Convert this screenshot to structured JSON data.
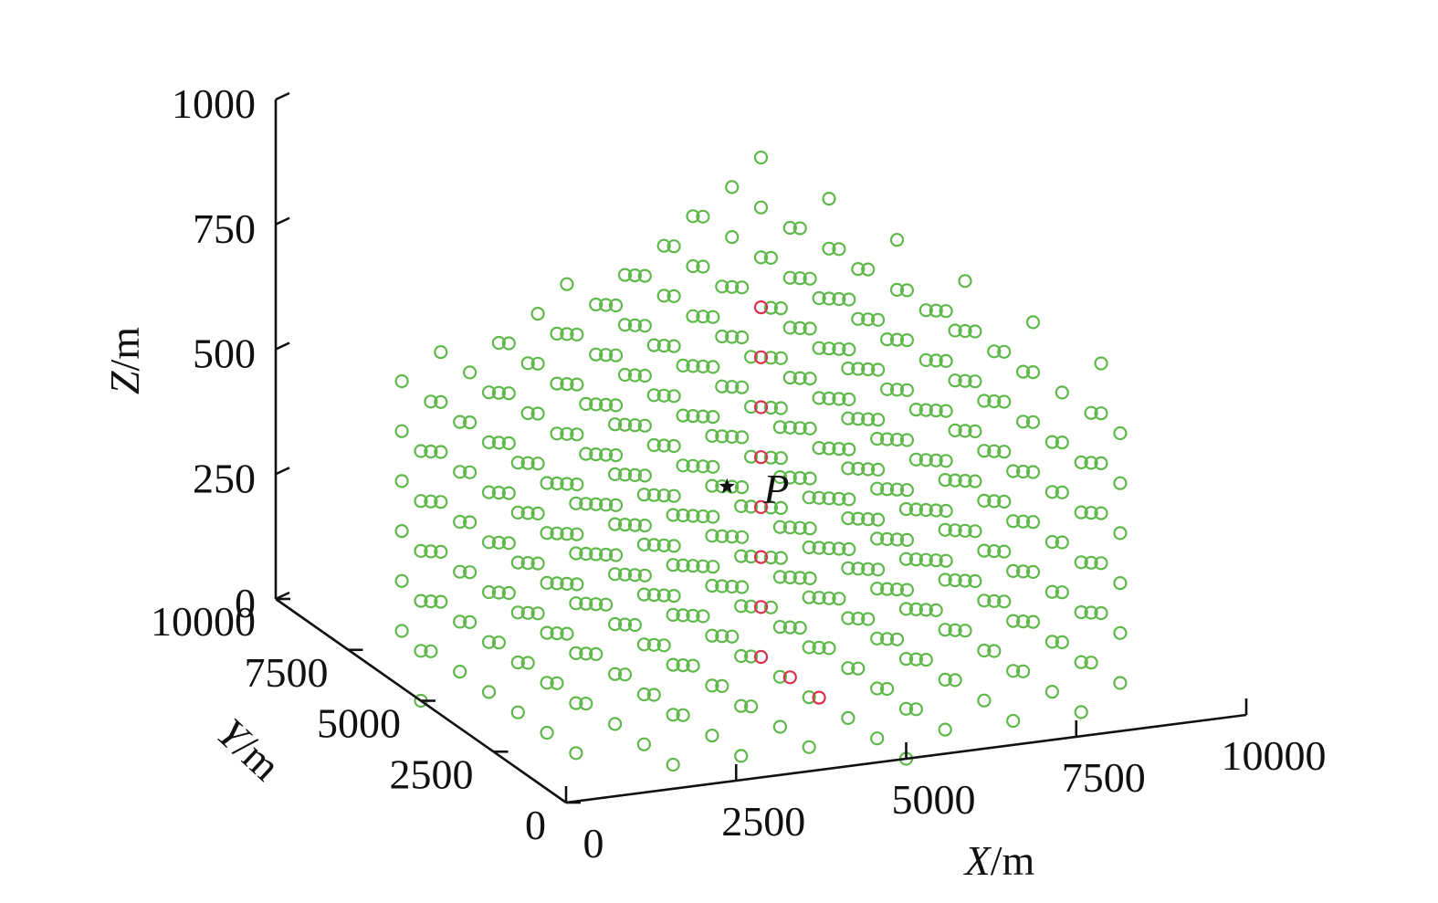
{
  "chart_data": {
    "type": "scatter",
    "projection": "3d",
    "axes": {
      "x": {
        "label_var": "X",
        "label_unit": "/m",
        "range": [
          0,
          10000
        ],
        "ticks": [
          "0",
          "2500",
          "5000",
          "7500",
          "10000"
        ]
      },
      "y": {
        "label_var": "Y",
        "label_unit": "/m",
        "range": [
          0,
          10000
        ],
        "ticks": [
          "0",
          "2500",
          "5000",
          "7500",
          "10000"
        ]
      },
      "z": {
        "label_var": "Z",
        "label_unit": "/m",
        "range": [
          0,
          1000
        ],
        "ticks": [
          "0",
          "250",
          "500",
          "750",
          "1000"
        ]
      }
    },
    "grid": false,
    "marker": "circle",
    "series": [
      {
        "role": "sensors",
        "color": "#5fb84a",
        "grid_step_xy": 1000,
        "grid_step_z": 100
      },
      {
        "role": "highlighted-column",
        "color": "#d9304c",
        "points": [
          {
            "x": 5000,
            "y": 5000,
            "z": 700
          },
          {
            "x": 5000,
            "y": 5000,
            "z": 600
          },
          {
            "x": 5000,
            "y": 5000,
            "z": 500
          },
          {
            "x": 5000,
            "y": 5000,
            "z": 400
          },
          {
            "x": 5000,
            "y": 5000,
            "z": 300
          },
          {
            "x": 5000,
            "y": 5000,
            "z": 200
          },
          {
            "x": 5000,
            "y": 5000,
            "z": 100
          },
          {
            "x": 5000,
            "y": 5000,
            "z": 0
          },
          {
            "x": 5000,
            "y": 4000,
            "z": 0
          },
          {
            "x": 5000,
            "y": 3000,
            "z": 0
          }
        ]
      }
    ],
    "annotations": [
      {
        "label": "P",
        "marker": "star",
        "color": "#111111",
        "x": 4500,
        "y": 5000,
        "z": 350
      }
    ]
  }
}
